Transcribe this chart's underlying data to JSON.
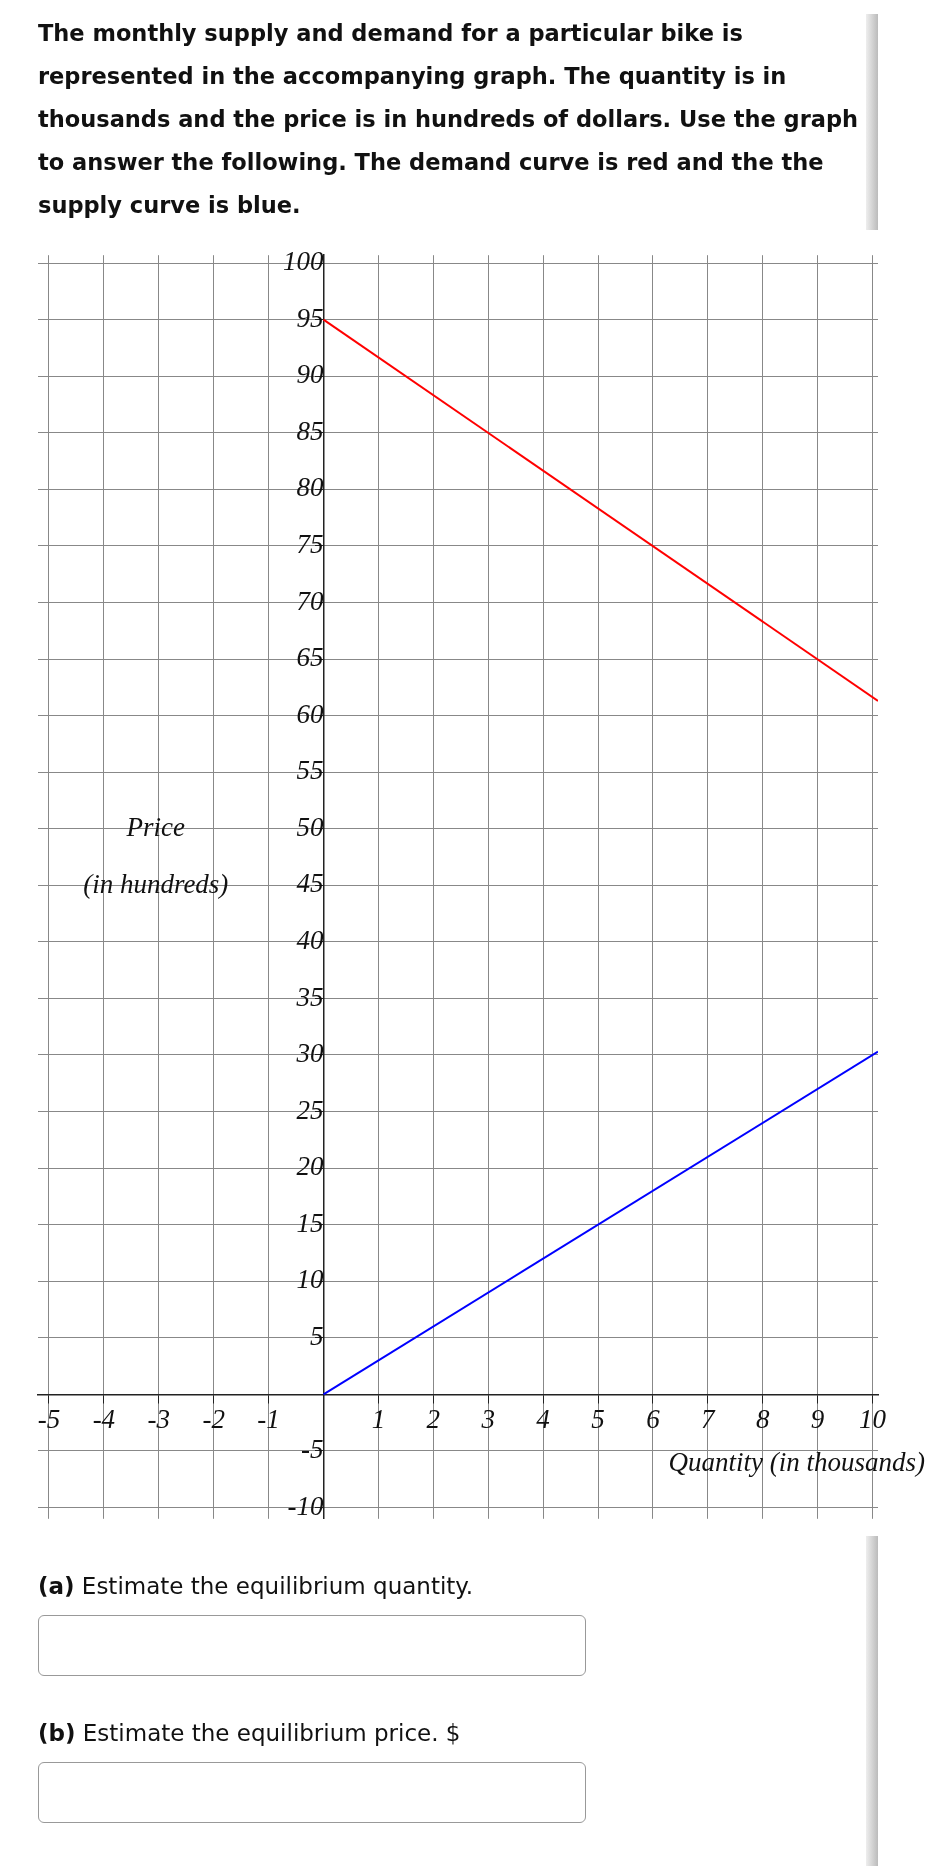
{
  "chart_data": {
    "type": "line",
    "title": "The monthly supply and demand for a particular bike is represented in the accompanying graph. The quantity is in thousands and the price is in hundreds of dollars. Use the graph to answer the following. The demand curve is red and the the supply curve is blue.",
    "xlabel": "Quantity (in thousands)",
    "ylabel": "Price\n(in hundreds)",
    "x": [
      0,
      10.1
    ],
    "series": [
      {
        "color": "#ff0000",
        "values": [
          95,
          61.3
        ]
      },
      {
        "color": "#0000ff",
        "values": [
          0,
          30.3
        ]
      }
    ],
    "xlim": [
      -5.2,
      10.1
    ],
    "ylim": [
      -11,
      100.7
    ],
    "xticks": [
      -5,
      -4,
      -3,
      -2,
      -1,
      1,
      2,
      3,
      4,
      5,
      6,
      7,
      8,
      9,
      10
    ],
    "yticks": [
      -10,
      -5,
      5,
      10,
      15,
      20,
      25,
      30,
      35,
      40,
      45,
      50,
      55,
      60,
      65,
      70,
      75,
      80,
      85,
      90,
      95,
      100
    ],
    "grid": true,
    "legend": false,
    "marker": "none",
    "line_style": "solid",
    "annotations": [
      "(a) Estimate the equilibrium quantity.",
      "(b) Estimate the equilibrium price. $"
    ]
  }
}
